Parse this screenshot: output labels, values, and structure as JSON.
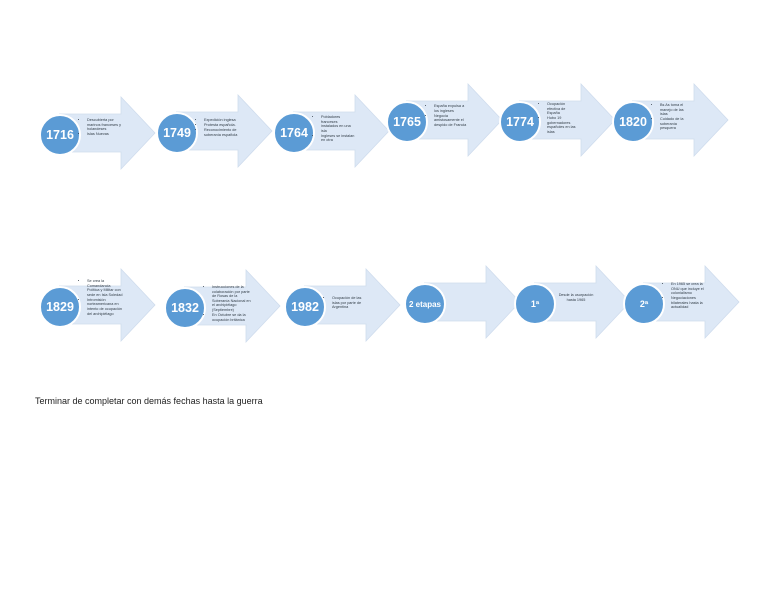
{
  "nodes": [
    {
      "label": "1716",
      "items": [
        "Descubierta por marinos franceses y holandeses",
        "Islas Nuevas"
      ]
    },
    {
      "label": "1749",
      "items": [
        "Expedición inglesa",
        "Protesta española.",
        "Reconocimiento de soberanía española"
      ]
    },
    {
      "label": "1764",
      "items": [
        "Pobladores franceses instalados en una isla",
        "Ingleses se instalan en otra"
      ]
    },
    {
      "label": "1765",
      "items": [
        "España expulsa a los ingleses",
        "Negocia amistosamente el despido de Francia"
      ]
    },
    {
      "label": "1774",
      "items": [
        "Ocupación efectiva de España",
        "Hubo 19 gobernadores españoles en las islas"
      ]
    },
    {
      "label": "1820",
      "items": [
        "Bs As toma el manejo de las islas",
        "Cuidado de la soberanía pesquera"
      ]
    },
    {
      "label": "1829",
      "items": [
        "Se crea la Comandancia Política y Militar con sede en Isla Soledad",
        "Intromisión norteamericana en intento de ocupación del archipiélago"
      ]
    },
    {
      "label": "1832",
      "items": [
        "Instrucciones de la colaboración por parte de Rosas de la Soberanía Nacional en el archipiélago (Septiembre)",
        "En Octubre se da la ocupación británica"
      ]
    },
    {
      "label": "1982",
      "items": [
        "Ocupación de las islas por parte de Argentina"
      ]
    },
    {
      "label": "2 etapas",
      "items": []
    },
    {
      "label": "1ª",
      "plain": "Desde la usurpación hasta 1965"
    },
    {
      "label": "2ª",
      "items": [
        "En 1965 se crea la ONU que incluye el colonialismo",
        "Negociaciones bilaterales hasta la actualidad"
      ]
    }
  ],
  "footer_text": "Terminar de completar con demás fechas hasta la guerra",
  "colors": {
    "circle": "#5b9bd5",
    "arrow": "#dde8f6",
    "arrow_edge": "#cfdced"
  }
}
